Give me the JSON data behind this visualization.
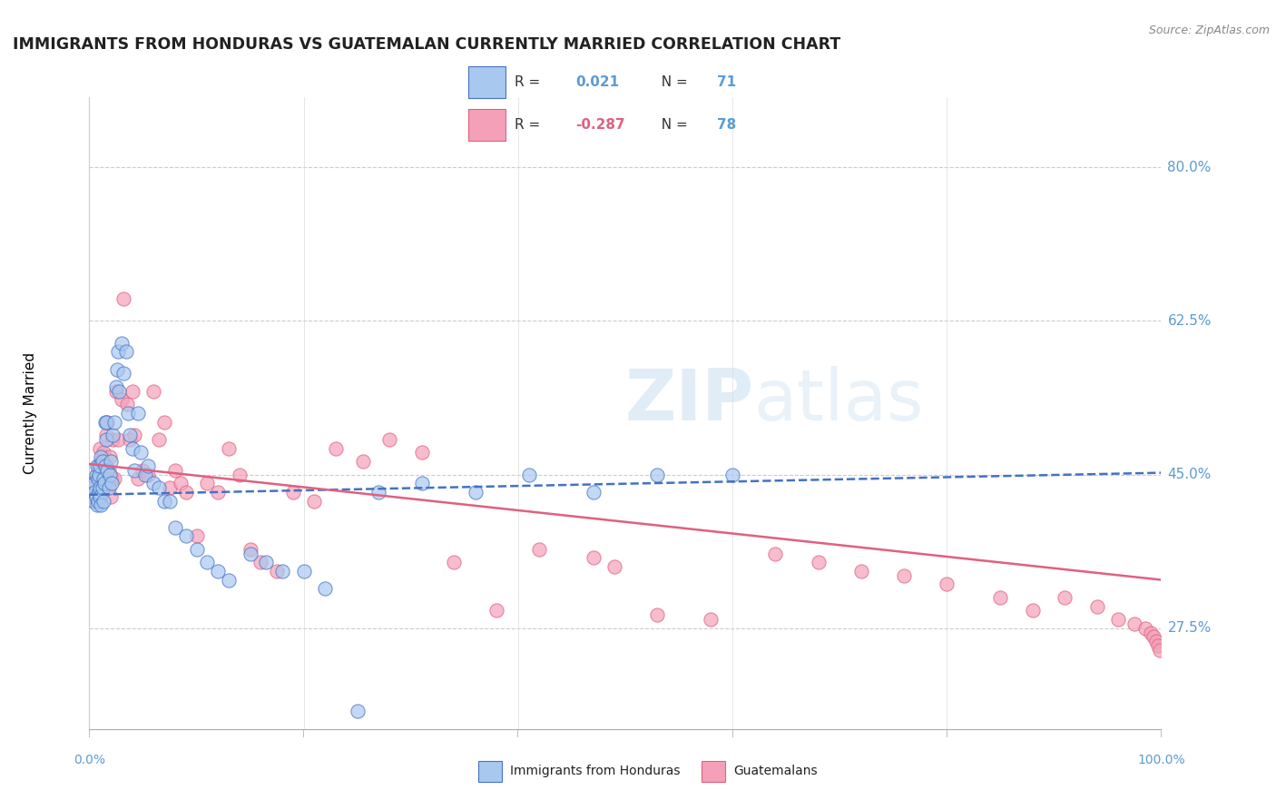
{
  "title": "IMMIGRANTS FROM HONDURAS VS GUATEMALAN CURRENTLY MARRIED CORRELATION CHART",
  "source": "Source: ZipAtlas.com",
  "ylabel": "Currently Married",
  "color_blue": "#A8C8F0",
  "color_pink": "#F4A0B8",
  "line_blue": "#4472C4",
  "line_pink": "#E06080",
  "ytick_labels": [
    "27.5%",
    "45.0%",
    "62.5%",
    "80.0%"
  ],
  "ytick_values": [
    0.275,
    0.45,
    0.625,
    0.8
  ],
  "xmin": 0.0,
  "xmax": 1.0,
  "ymin": 0.16,
  "ymax": 0.88,
  "blue_line_x0": 0.0,
  "blue_line_y0": 0.427,
  "blue_line_x1": 1.0,
  "blue_line_y1": 0.452,
  "pink_line_x0": 0.0,
  "pink_line_y0": 0.462,
  "pink_line_x1": 1.0,
  "pink_line_y1": 0.33,
  "blue_points_x": [
    0.003,
    0.004,
    0.005,
    0.005,
    0.006,
    0.006,
    0.007,
    0.007,
    0.008,
    0.008,
    0.009,
    0.009,
    0.01,
    0.01,
    0.01,
    0.011,
    0.011,
    0.012,
    0.012,
    0.013,
    0.013,
    0.014,
    0.015,
    0.015,
    0.016,
    0.016,
    0.017,
    0.018,
    0.019,
    0.02,
    0.021,
    0.022,
    0.023,
    0.025,
    0.026,
    0.027,
    0.028,
    0.03,
    0.032,
    0.034,
    0.036,
    0.038,
    0.04,
    0.042,
    0.045,
    0.048,
    0.052,
    0.055,
    0.06,
    0.065,
    0.07,
    0.075,
    0.08,
    0.09,
    0.1,
    0.11,
    0.12,
    0.13,
    0.15,
    0.165,
    0.18,
    0.2,
    0.22,
    0.25,
    0.27,
    0.31,
    0.36,
    0.41,
    0.47,
    0.53,
    0.6
  ],
  "blue_points_y": [
    0.435,
    0.42,
    0.44,
    0.43,
    0.45,
    0.425,
    0.46,
    0.415,
    0.445,
    0.42,
    0.43,
    0.45,
    0.46,
    0.435,
    0.425,
    0.47,
    0.415,
    0.465,
    0.435,
    0.445,
    0.42,
    0.44,
    0.46,
    0.51,
    0.51,
    0.49,
    0.455,
    0.435,
    0.45,
    0.465,
    0.44,
    0.495,
    0.51,
    0.55,
    0.57,
    0.59,
    0.545,
    0.6,
    0.565,
    0.59,
    0.52,
    0.495,
    0.48,
    0.455,
    0.52,
    0.475,
    0.45,
    0.46,
    0.44,
    0.435,
    0.42,
    0.42,
    0.39,
    0.38,
    0.365,
    0.35,
    0.34,
    0.33,
    0.36,
    0.35,
    0.34,
    0.34,
    0.32,
    0.18,
    0.43,
    0.44,
    0.43,
    0.45,
    0.43,
    0.45,
    0.45
  ],
  "pink_points_x": [
    0.003,
    0.004,
    0.005,
    0.006,
    0.007,
    0.008,
    0.009,
    0.01,
    0.01,
    0.011,
    0.012,
    0.013,
    0.014,
    0.015,
    0.016,
    0.017,
    0.018,
    0.019,
    0.02,
    0.021,
    0.022,
    0.023,
    0.025,
    0.027,
    0.03,
    0.032,
    0.035,
    0.038,
    0.04,
    0.042,
    0.045,
    0.05,
    0.055,
    0.06,
    0.065,
    0.07,
    0.075,
    0.08,
    0.085,
    0.09,
    0.1,
    0.11,
    0.12,
    0.13,
    0.14,
    0.15,
    0.16,
    0.175,
    0.19,
    0.21,
    0.23,
    0.255,
    0.28,
    0.31,
    0.34,
    0.38,
    0.42,
    0.47,
    0.49,
    0.53,
    0.58,
    0.64,
    0.68,
    0.72,
    0.76,
    0.8,
    0.85,
    0.88,
    0.91,
    0.94,
    0.96,
    0.975,
    0.985,
    0.99,
    0.993,
    0.995,
    0.997,
    0.999
  ],
  "pink_points_y": [
    0.44,
    0.425,
    0.435,
    0.43,
    0.45,
    0.46,
    0.445,
    0.48,
    0.43,
    0.465,
    0.45,
    0.475,
    0.44,
    0.435,
    0.495,
    0.51,
    0.455,
    0.47,
    0.425,
    0.445,
    0.49,
    0.445,
    0.545,
    0.49,
    0.535,
    0.65,
    0.53,
    0.49,
    0.545,
    0.495,
    0.445,
    0.455,
    0.45,
    0.545,
    0.49,
    0.51,
    0.435,
    0.455,
    0.44,
    0.43,
    0.38,
    0.44,
    0.43,
    0.48,
    0.45,
    0.365,
    0.35,
    0.34,
    0.43,
    0.42,
    0.48,
    0.465,
    0.49,
    0.475,
    0.35,
    0.295,
    0.365,
    0.355,
    0.345,
    0.29,
    0.285,
    0.36,
    0.35,
    0.34,
    0.335,
    0.325,
    0.31,
    0.295,
    0.31,
    0.3,
    0.285,
    0.28,
    0.275,
    0.27,
    0.265,
    0.26,
    0.255,
    0.25
  ]
}
